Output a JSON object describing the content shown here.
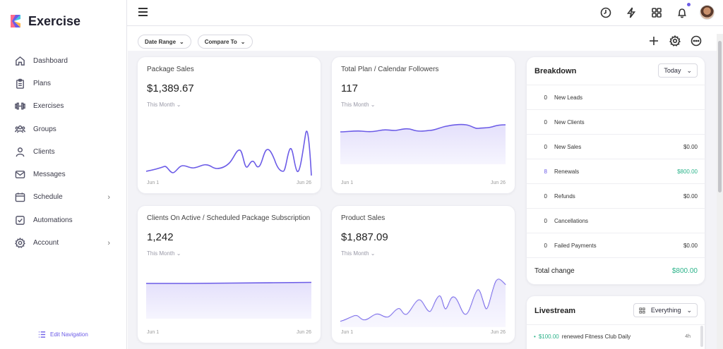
{
  "app": {
    "name": "Exercise"
  },
  "sidebar": {
    "items": [
      {
        "label": "Dashboard",
        "icon": "home-icon"
      },
      {
        "label": "Plans",
        "icon": "clipboard-icon"
      },
      {
        "label": "Exercises",
        "icon": "dumbbell-icon"
      },
      {
        "label": "Groups",
        "icon": "group-icon"
      },
      {
        "label": "Clients",
        "icon": "user-icon"
      },
      {
        "label": "Messages",
        "icon": "mail-icon"
      },
      {
        "label": "Schedule",
        "icon": "calendar-icon"
      },
      {
        "label": "Automations",
        "icon": "checkbox-icon"
      },
      {
        "label": "Account",
        "icon": "gear-icon"
      }
    ],
    "edit_nav": "Edit Navigation"
  },
  "filters": {
    "date_range": "Date Range",
    "compare_to": "Compare To"
  },
  "cards": [
    {
      "title": "Package Sales",
      "value": "$1,389.67",
      "period": "This Month",
      "x_start": "Jun 1",
      "x_end": "Jun 26"
    },
    {
      "title": "Total Plan / Calendar Followers",
      "value": "117",
      "period": "This Month",
      "x_start": "Jun 1",
      "x_end": "Jun 26"
    },
    {
      "title": "Clients On Active / Scheduled Package Subscription",
      "value": "1,242",
      "period": "This Month",
      "x_start": "Jun 1",
      "x_end": "Jun 26"
    },
    {
      "title": "Product Sales",
      "value": "$1,887.09",
      "period": "This Month",
      "x_start": "Jun 1",
      "x_end": "Jun 26"
    }
  ],
  "breakdown": {
    "title": "Breakdown",
    "period": "Today",
    "rows": [
      {
        "count": "0",
        "label": "New Leads",
        "amount": ""
      },
      {
        "count": "0",
        "label": "New Clients",
        "amount": ""
      },
      {
        "count": "0",
        "label": "New Sales",
        "amount": "$0.00"
      },
      {
        "count": "8",
        "label": "Renewals",
        "amount": "$800.00"
      },
      {
        "count": "0",
        "label": "Refunds",
        "amount": "$0.00"
      },
      {
        "count": "0",
        "label": "Cancellations",
        "amount": ""
      },
      {
        "count": "0",
        "label": "Failed Payments",
        "amount": "$0.00"
      }
    ],
    "total_label": "Total change",
    "total_amount": "$800.00"
  },
  "livestream": {
    "title": "Livestream",
    "filter": "Everything",
    "items": [
      {
        "amount": "$100.00",
        "text": "renewed Fitness Club Daily",
        "time": "4h"
      }
    ]
  },
  "colors": {
    "accent": "#6c5ce7",
    "positive": "#2bb38a"
  }
}
